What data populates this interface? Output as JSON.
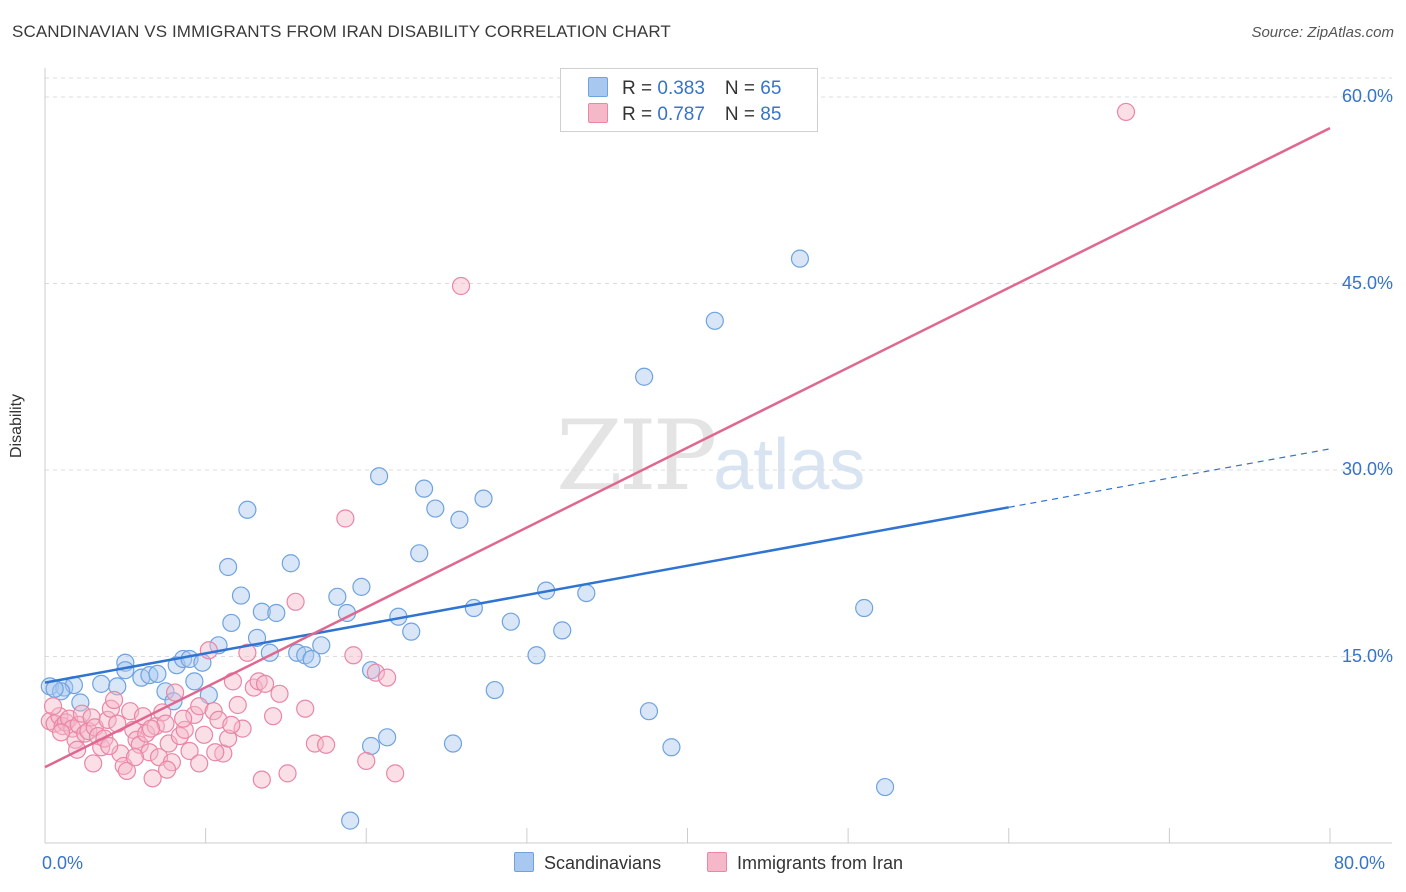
{
  "header": {
    "title": "SCANDINAVIAN VS IMMIGRANTS FROM IRAN DISABILITY CORRELATION CHART",
    "source": "Source: ZipAtlas.com"
  },
  "watermark": {
    "zip": "ZIP",
    "atlas": "atlas"
  },
  "legend": {
    "rows": [
      {
        "r_label": "R = ",
        "r_value": "0.383",
        "n_label": "N = ",
        "n_value": "65",
        "color": "#a9c8ef"
      },
      {
        "r_label": "R = ",
        "r_value": "0.787",
        "n_label": "N = ",
        "n_value": "85",
        "color": "#f5b8c9"
      }
    ]
  },
  "bottom_legend": {
    "items": [
      {
        "label": "Scandinavians",
        "color": "#a9c8ef"
      },
      {
        "label": "Immigrants from Iran",
        "color": "#f5b8c9"
      }
    ]
  },
  "chart_data": {
    "type": "scatter",
    "ylabel": "Disability",
    "xlabel": "",
    "xlim": [
      0,
      80
    ],
    "ylim": [
      0,
      60
    ],
    "x_tick_labels": [
      "0.0%",
      "80.0%"
    ],
    "y_ticks": [
      15,
      30,
      45,
      60
    ],
    "y_tick_labels": [
      "15.0%",
      "30.0%",
      "45.0%",
      "60.0%"
    ],
    "grid": true,
    "series": [
      {
        "name": "Scandinavians",
        "color": "#6fa3e0",
        "fill": "#a9c8ef",
        "line_color": "#2e74d0",
        "trend": {
          "x0": 0,
          "y0": 12.9,
          "x1": 60,
          "y1": 27.0,
          "x_dash_end": 80,
          "y_dash_end": 31.7
        },
        "points": [
          [
            0.3,
            12.6
          ],
          [
            1.2,
            12.5
          ],
          [
            1.8,
            12.7
          ],
          [
            3.5,
            12.8
          ],
          [
            4.5,
            12.6
          ],
          [
            2.2,
            11.3
          ],
          [
            5.0,
            14.5
          ],
          [
            5.0,
            13.9
          ],
          [
            6.0,
            13.3
          ],
          [
            6.5,
            13.5
          ],
          [
            7.0,
            13.6
          ],
          [
            7.5,
            12.2
          ],
          [
            8.0,
            11.4
          ],
          [
            8.2,
            14.3
          ],
          [
            8.6,
            14.8
          ],
          [
            9.0,
            14.8
          ],
          [
            9.3,
            13.0
          ],
          [
            9.8,
            14.5
          ],
          [
            10.2,
            11.9
          ],
          [
            10.8,
            15.9
          ],
          [
            11.4,
            22.2
          ],
          [
            11.6,
            17.7
          ],
          [
            12.2,
            19.9
          ],
          [
            12.6,
            26.8
          ],
          [
            13.2,
            16.5
          ],
          [
            13.5,
            18.6
          ],
          [
            14.0,
            15.3
          ],
          [
            14.4,
            18.5
          ],
          [
            15.3,
            22.5
          ],
          [
            15.7,
            15.3
          ],
          [
            16.2,
            15.1
          ],
          [
            16.6,
            14.8
          ],
          [
            17.2,
            15.9
          ],
          [
            18.2,
            19.8
          ],
          [
            18.8,
            18.5
          ],
          [
            19.7,
            20.6
          ],
          [
            20.3,
            13.9
          ],
          [
            20.3,
            7.8
          ],
          [
            20.8,
            29.5
          ],
          [
            21.3,
            8.5
          ],
          [
            22.0,
            18.2
          ],
          [
            22.8,
            17.0
          ],
          [
            23.3,
            23.3
          ],
          [
            23.6,
            28.5
          ],
          [
            24.3,
            26.9
          ],
          [
            25.4,
            8.0
          ],
          [
            25.8,
            26.0
          ],
          [
            26.7,
            18.9
          ],
          [
            27.3,
            27.7
          ],
          [
            28.0,
            12.3
          ],
          [
            29.0,
            17.8
          ],
          [
            30.6,
            15.1
          ],
          [
            31.2,
            20.3
          ],
          [
            32.2,
            17.1
          ],
          [
            33.7,
            20.1
          ],
          [
            37.3,
            37.5
          ],
          [
            37.6,
            10.6
          ],
          [
            39.0,
            7.7
          ],
          [
            41.7,
            42.0
          ],
          [
            47.0,
            47.0
          ],
          [
            51.0,
            18.9
          ],
          [
            52.3,
            4.5
          ],
          [
            19.0,
            1.8
          ],
          [
            1.0,
            12.2
          ],
          [
            0.6,
            12.4
          ]
        ]
      },
      {
        "name": "Immigrants from Iran",
        "color": "#ea86a6",
        "fill": "#f5b8c9",
        "line_color": "#e0678f",
        "trend": {
          "x0": 0,
          "y0": 6.1,
          "x1": 80,
          "y1": 57.5
        },
        "points": [
          [
            0.3,
            9.8
          ],
          [
            0.6,
            9.6
          ],
          [
            0.9,
            10.2
          ],
          [
            1.1,
            9.4
          ],
          [
            1.3,
            9.7
          ],
          [
            1.5,
            10.0
          ],
          [
            1.7,
            9.2
          ],
          [
            1.9,
            8.3
          ],
          [
            2.1,
            9.5
          ],
          [
            2.3,
            10.4
          ],
          [
            2.5,
            8.8
          ],
          [
            2.7,
            9.0
          ],
          [
            2.9,
            10.1
          ],
          [
            3.1,
            9.3
          ],
          [
            3.3,
            8.6
          ],
          [
            3.5,
            7.7
          ],
          [
            3.7,
            8.4
          ],
          [
            3.9,
            9.9
          ],
          [
            4.1,
            10.8
          ],
          [
            4.3,
            11.5
          ],
          [
            4.5,
            9.6
          ],
          [
            4.7,
            7.2
          ],
          [
            4.9,
            6.2
          ],
          [
            5.1,
            5.8
          ],
          [
            5.3,
            10.6
          ],
          [
            5.5,
            9.1
          ],
          [
            5.7,
            8.3
          ],
          [
            5.9,
            7.9
          ],
          [
            6.1,
            10.2
          ],
          [
            6.3,
            8.8
          ],
          [
            6.5,
            7.3
          ],
          [
            6.7,
            5.2
          ],
          [
            6.9,
            9.4
          ],
          [
            7.1,
            6.9
          ],
          [
            7.3,
            10.5
          ],
          [
            7.5,
            9.6
          ],
          [
            7.7,
            8.0
          ],
          [
            7.9,
            6.5
          ],
          [
            8.1,
            12.1
          ],
          [
            8.4,
            8.6
          ],
          [
            8.7,
            9.1
          ],
          [
            9.0,
            7.4
          ],
          [
            9.3,
            10.3
          ],
          [
            9.6,
            11.0
          ],
          [
            9.9,
            8.7
          ],
          [
            10.2,
            15.5
          ],
          [
            10.5,
            10.6
          ],
          [
            10.8,
            9.9
          ],
          [
            11.1,
            7.2
          ],
          [
            11.4,
            8.4
          ],
          [
            11.7,
            13.0
          ],
          [
            12.0,
            11.1
          ],
          [
            12.3,
            9.2
          ],
          [
            12.6,
            15.3
          ],
          [
            13.0,
            12.5
          ],
          [
            13.3,
            13.0
          ],
          [
            13.7,
            12.8
          ],
          [
            14.2,
            10.2
          ],
          [
            14.6,
            12.0
          ],
          [
            15.1,
            5.6
          ],
          [
            15.6,
            19.4
          ],
          [
            16.2,
            10.8
          ],
          [
            16.8,
            8.0
          ],
          [
            17.5,
            7.9
          ],
          [
            18.7,
            26.1
          ],
          [
            19.2,
            15.1
          ],
          [
            20.0,
            6.6
          ],
          [
            20.6,
            13.7
          ],
          [
            21.3,
            13.3
          ],
          [
            21.8,
            5.6
          ],
          [
            25.9,
            44.8
          ],
          [
            67.3,
            58.8
          ],
          [
            0.5,
            11.0
          ],
          [
            1.0,
            8.9
          ],
          [
            2.0,
            7.5
          ],
          [
            3.0,
            6.4
          ],
          [
            4.0,
            7.8
          ],
          [
            5.6,
            6.9
          ],
          [
            6.6,
            9.2
          ],
          [
            7.6,
            5.9
          ],
          [
            8.6,
            10.0
          ],
          [
            9.6,
            6.4
          ],
          [
            10.6,
            7.3
          ],
          [
            11.6,
            9.5
          ],
          [
            13.5,
            5.1
          ]
        ]
      }
    ]
  }
}
